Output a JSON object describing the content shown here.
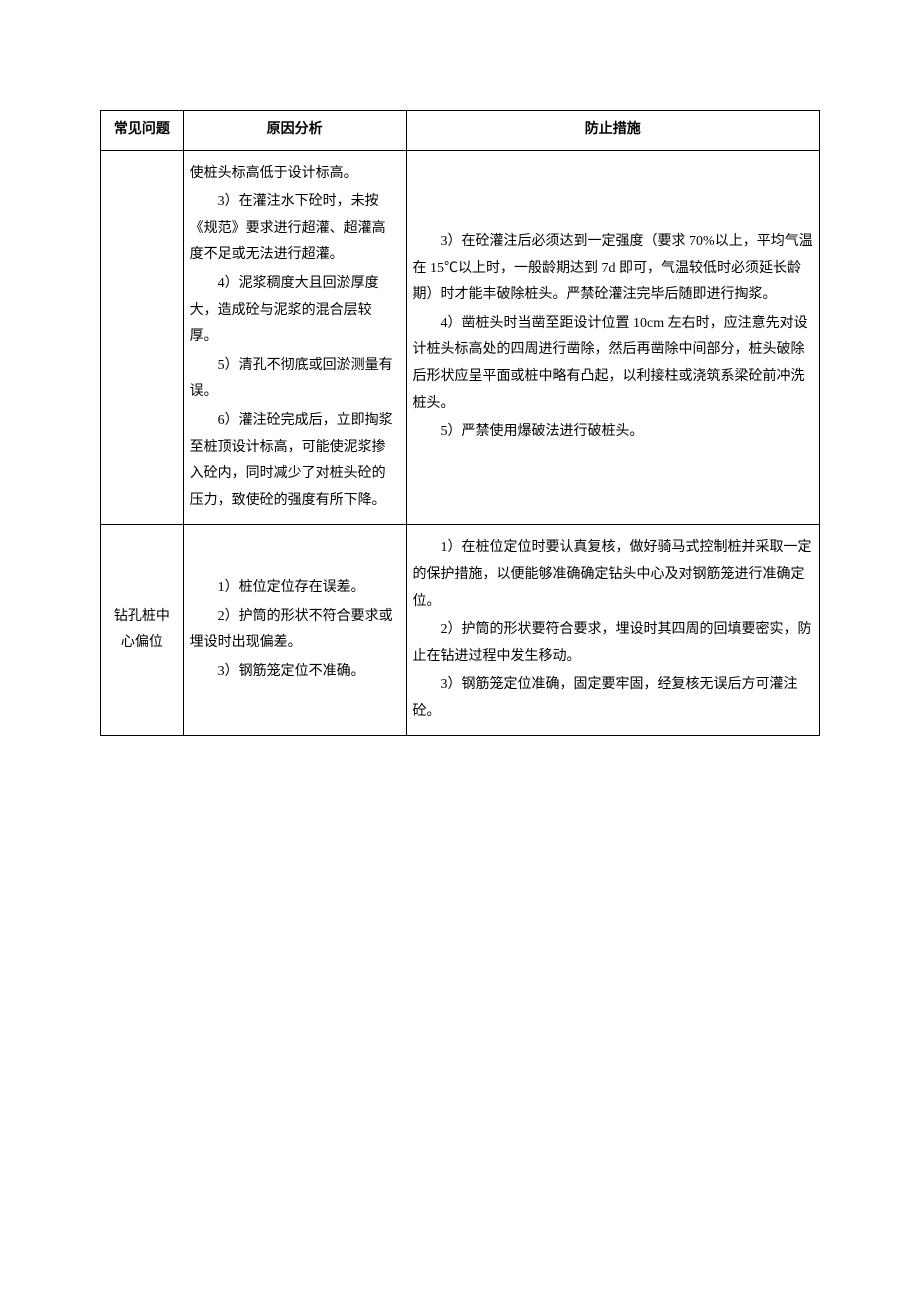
{
  "table": {
    "headers": [
      "常见问题",
      "原因分析",
      "防止措施"
    ],
    "rows": [
      {
        "topic": "",
        "cause": [
          {
            "text": "使桩头标高低于设计标高。",
            "indent": false
          },
          {
            "text": "3）在灌注水下砼时，未按《规范》要求进行超灌、超灌高度不足或无法进行超灌。",
            "indent": true
          },
          {
            "text": "4）泥浆稠度大且回淤厚度大，造成砼与泥浆的混合层较厚。",
            "indent": true
          },
          {
            "text": "5）清孔不彻底或回淤测量有误。",
            "indent": true
          },
          {
            "text": "6）灌注砼完成后，立即掏浆至桩顶设计标高，可能使泥浆掺入砼内，同时减少了对桩头砼的压力，致使砼的强度有所下降。",
            "indent": true
          }
        ],
        "prevent": [
          {
            "text": "3）在砼灌注后必须达到一定强度（要求 70%以上，平均气温在 15℃以上时，一般龄期达到 7d 即可，气温较低时必须延长龄期）时才能丰破除桩头。严禁砼灌注完毕后随即进行掏浆。",
            "indent": true
          },
          {
            "text": "4）凿桩头时当凿至距设计位置 10cm 左右时，应注意先对设计桩头标高处的四周进行凿除，然后再凿除中间部分，桩头破除后形状应呈平面或桩中略有凸起，以利接柱或浇筑系梁砼前冲洗桩头。",
            "indent": true
          },
          {
            "text": "5）严禁使用爆破法进行破桩头。",
            "indent": true
          }
        ]
      },
      {
        "topic": "钻孔桩中心偏位",
        "cause": [
          {
            "text": "1）桩位定位存在误差。",
            "indent": true
          },
          {
            "text": "2）护筒的形状不符合要求或埋设时出现偏差。",
            "indent": true
          },
          {
            "text": "3）钢筋笼定位不准确。",
            "indent": true
          }
        ],
        "prevent": [
          {
            "text": "1）在桩位定位时要认真复核，做好骑马式控制桩并采取一定的保护措施，以便能够准确确定钻头中心及对钢筋笼进行准确定位。",
            "indent": true
          },
          {
            "text": "2）护筒的形状要符合要求，埋设时其四周的回填要密实，防止在钻进过程中发生移动。",
            "indent": true
          },
          {
            "text": "3）钢筋笼定位准确，固定要牢固，经复核无误后方可灌注砼。",
            "indent": true
          }
        ]
      }
    ]
  }
}
